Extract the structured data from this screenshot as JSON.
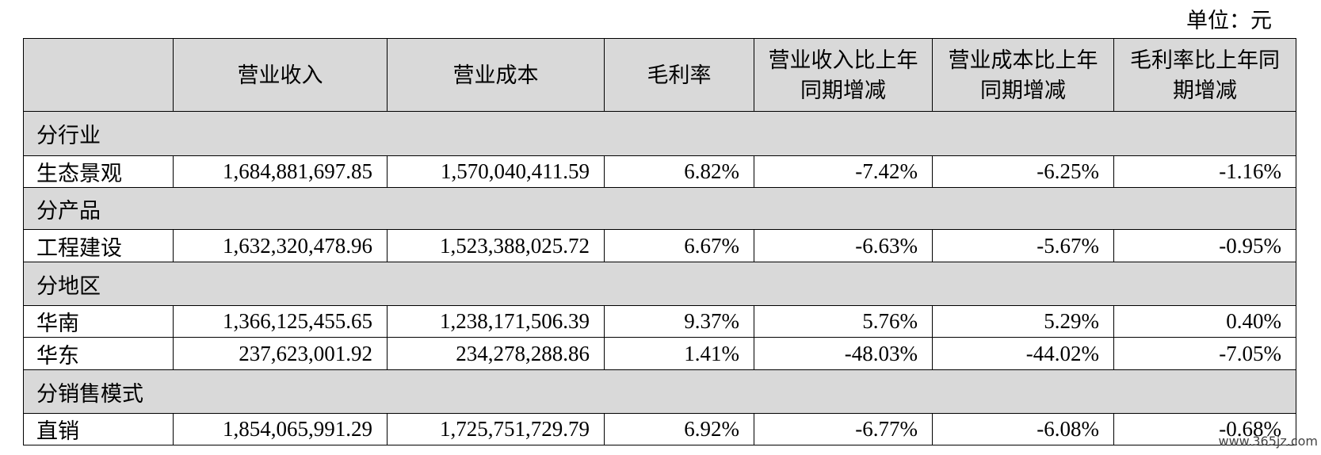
{
  "unit": "单位：元",
  "table": {
    "header": [
      "",
      "营业收入",
      "营业成本",
      "毛利率",
      "营业收入比上年同期增减",
      "营业成本比上年同期增减",
      "毛利率比上年同期增减"
    ],
    "rows": [
      {
        "section": "分行业"
      },
      {
        "cells": [
          "生态景观",
          "1,684,881,697.85",
          "1,570,040,411.59",
          "6.82%",
          "-7.42%",
          "-6.25%",
          "-1.16%"
        ]
      },
      {
        "section": "分产品"
      },
      {
        "cells": [
          "工程建设",
          "1,632,320,478.96",
          "1,523,388,025.72",
          "6.67%",
          "-6.63%",
          "-5.67%",
          "-0.95%"
        ]
      },
      {
        "section": "分地区"
      },
      {
        "cells": [
          "华南",
          "1,366,125,455.65",
          "1,238,171,506.39",
          "9.37%",
          "5.76%",
          "5.29%",
          "0.40%"
        ]
      },
      {
        "cells": [
          "华东",
          "237,623,001.92",
          "234,278,288.86",
          "1.41%",
          "-48.03%",
          "-44.02%",
          "-7.05%"
        ]
      },
      {
        "section": "分销售模式"
      },
      {
        "cells": [
          "直销",
          "1,854,065,991.29",
          "1,725,751,729.79",
          "6.92%",
          "-6.77%",
          "-6.08%",
          "-0.68%"
        ]
      }
    ]
  },
  "watermark": "www.365jz.com"
}
